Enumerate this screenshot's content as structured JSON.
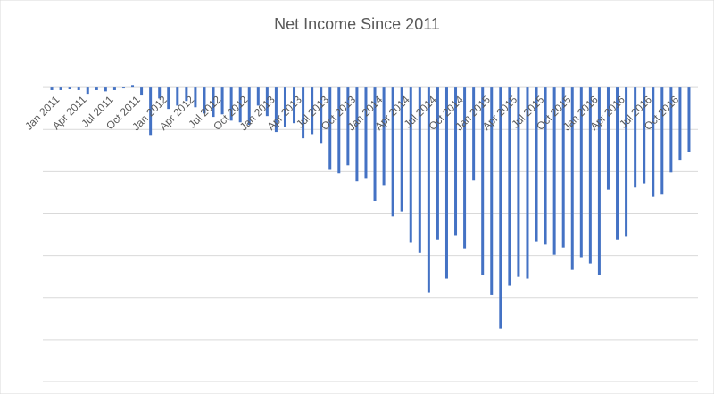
{
  "chart_data": {
    "type": "bar",
    "title": "Net Income Since 2011",
    "categories": [
      "Jan 2011",
      null,
      null,
      "Apr 2011",
      null,
      null,
      "Jul 2011",
      null,
      null,
      "Oct 2011",
      null,
      null,
      "Jan 2012",
      null,
      null,
      "Apr 2012",
      null,
      null,
      "Jul 2012",
      null,
      null,
      "Oct 2012",
      null,
      null,
      "Jan 2013",
      null,
      null,
      "Apr 2013",
      null,
      null,
      "Jul 2013",
      null,
      null,
      "Oct 2013",
      null,
      null,
      "Jan 2014",
      null,
      null,
      "Apr 2014",
      null,
      null,
      "Jul 2014",
      null,
      null,
      "Oct 2014",
      null,
      null,
      "Jan 2015",
      null,
      null,
      "Apr 2015",
      null,
      null,
      "Jul 2015",
      null,
      null,
      "Oct 2015",
      null,
      null,
      "Jan 2016",
      null,
      null,
      "Apr 2016",
      null,
      null,
      "Jul 2016",
      null,
      null,
      "Oct 2016",
      null,
      null
    ],
    "values": [
      -0.06,
      -0.06,
      -0.04,
      -0.06,
      -0.17,
      -0.06,
      -0.09,
      -0.06,
      -0.02,
      0.06,
      -0.19,
      -1.15,
      -0.26,
      -0.51,
      -0.43,
      -0.32,
      -0.47,
      -0.62,
      -0.7,
      -0.64,
      -0.79,
      -0.83,
      -0.89,
      -0.43,
      -0.68,
      -1.06,
      -0.94,
      -0.85,
      -1.21,
      -1.11,
      -1.32,
      -1.96,
      -2.04,
      -1.85,
      -2.23,
      -2.17,
      -2.7,
      -2.34,
      -3.06,
      -2.96,
      -3.7,
      -3.94,
      -4.89,
      -3.62,
      -4.55,
      -3.53,
      -3.83,
      -2.21,
      -4.47,
      -4.94,
      -5.74,
      -4.72,
      -4.51,
      -4.55,
      -3.66,
      -3.74,
      -3.98,
      -3.81,
      -4.34,
      -4.04,
      -4.19,
      -4.47,
      -2.43,
      -3.62,
      -3.55,
      -2.38,
      -2.28,
      -2.6,
      -2.55,
      -2.02,
      -1.74,
      -1.53
    ],
    "color": "#4472c4",
    "ylim": [
      -7,
      1
    ],
    "grid_lines": [
      0,
      -1,
      -2,
      -3,
      -4,
      -5,
      -6,
      -7
    ],
    "grid": true
  }
}
